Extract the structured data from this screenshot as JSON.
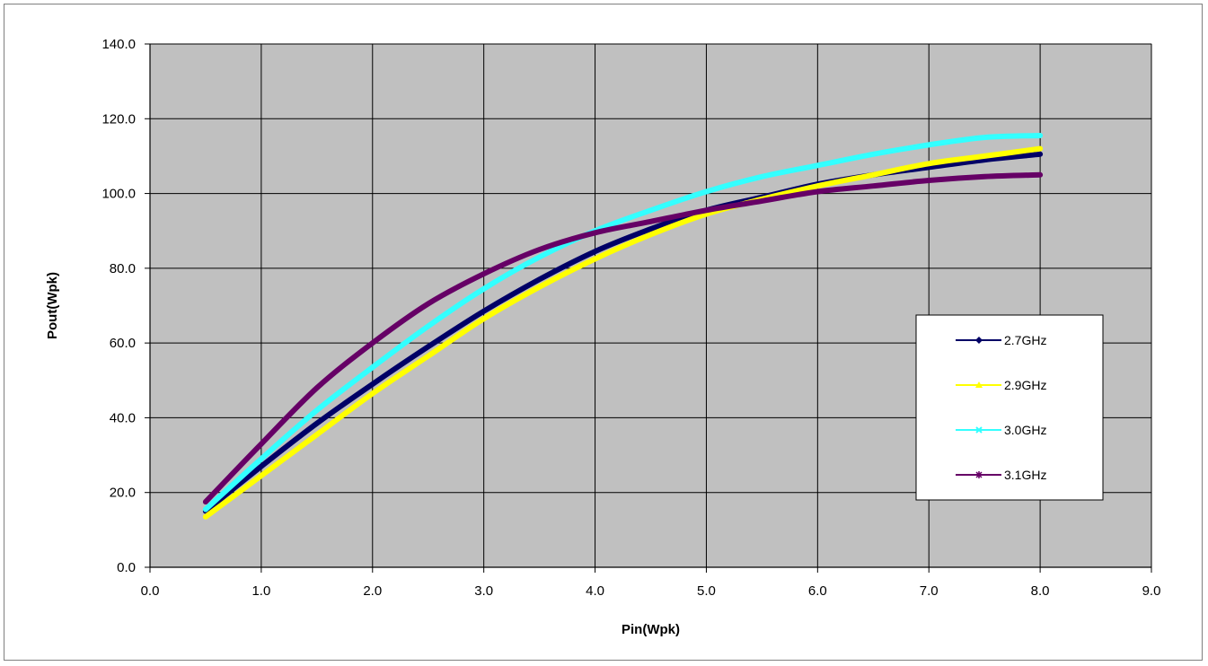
{
  "chart_data": {
    "type": "line",
    "xlabel": "Pin(Wpk)",
    "ylabel": "Pout(Wpk)",
    "xlim": [
      0,
      9
    ],
    "ylim": [
      0,
      140
    ],
    "x_ticks": [
      "0.0",
      "1.0",
      "2.0",
      "3.0",
      "4.0",
      "5.0",
      "6.0",
      "7.0",
      "8.0",
      "9.0"
    ],
    "y_ticks": [
      "0.0",
      "20.0",
      "40.0",
      "60.0",
      "80.0",
      "100.0",
      "120.0",
      "140.0"
    ],
    "grid": true,
    "legend_position": "right",
    "plot_background": "#c0c0c0",
    "series": [
      {
        "name": "2.7GHz",
        "color": "#000066",
        "marker": "diamond",
        "x": [
          0.5,
          1.0,
          1.5,
          2.0,
          2.5,
          3.0,
          3.5,
          4.0,
          4.5,
          5.0,
          5.5,
          6.0,
          6.5,
          7.0,
          7.5,
          8.0
        ],
        "y": [
          15.0,
          27.0,
          38.5,
          49.0,
          59.0,
          68.5,
          77.0,
          84.5,
          90.5,
          95.5,
          99.0,
          102.5,
          105.0,
          107.0,
          109.0,
          110.5
        ]
      },
      {
        "name": "2.9GHz",
        "color": "#ffff00",
        "marker": "triangle",
        "x": [
          0.5,
          1.0,
          1.5,
          2.0,
          2.5,
          3.0,
          3.5,
          4.0,
          4.5,
          5.0,
          5.5,
          6.0,
          6.5,
          7.0,
          7.5,
          8.0
        ],
        "y": [
          13.5,
          24.5,
          35.5,
          46.5,
          56.5,
          66.5,
          75.0,
          82.5,
          89.0,
          94.5,
          98.5,
          102.0,
          105.0,
          108.0,
          110.0,
          112.0
        ]
      },
      {
        "name": "3.0GHz",
        "color": "#33ffff",
        "marker": "x",
        "x": [
          0.5,
          1.0,
          1.5,
          2.0,
          2.5,
          3.0,
          3.5,
          4.0,
          4.5,
          5.0,
          5.5,
          6.0,
          6.5,
          7.0,
          7.5,
          8.0
        ],
        "y": [
          15.5,
          29.0,
          42.0,
          53.5,
          64.5,
          74.5,
          83.0,
          90.0,
          95.5,
          100.5,
          104.5,
          107.5,
          110.5,
          113.0,
          115.0,
          115.5
        ]
      },
      {
        "name": "3.1GHz",
        "color": "#660066",
        "marker": "star",
        "x": [
          0.5,
          1.0,
          1.5,
          2.0,
          2.5,
          3.0,
          3.5,
          4.0,
          4.5,
          5.0,
          5.5,
          6.0,
          6.5,
          7.0,
          7.5,
          8.0
        ],
        "y": [
          17.5,
          33.0,
          48.0,
          60.0,
          70.5,
          78.5,
          85.0,
          89.5,
          92.5,
          95.5,
          98.0,
          100.5,
          102.0,
          103.5,
          104.5,
          105.0
        ]
      }
    ]
  }
}
